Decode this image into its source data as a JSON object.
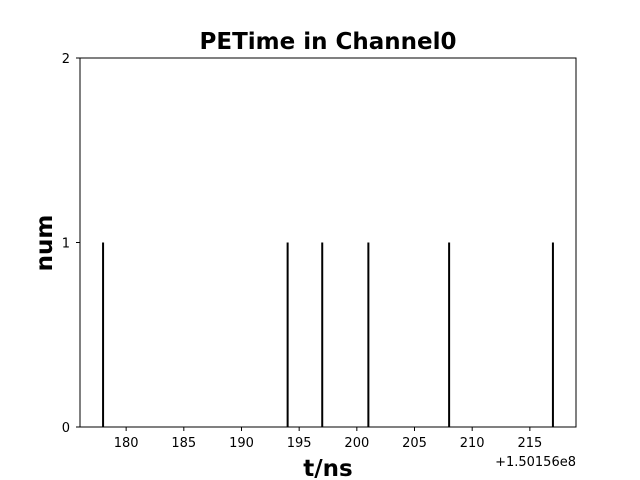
{
  "chart_data": {
    "type": "bar",
    "title": "PETime in Channel0",
    "xlabel": "t/ns",
    "ylabel": "num",
    "x_offset_label": "+1.50156e8",
    "x_offset": 150156000,
    "xlim": [
      176,
      219
    ],
    "ylim": [
      0,
      2
    ],
    "xticks": [
      180,
      185,
      190,
      195,
      200,
      205,
      210,
      215
    ],
    "yticks": [
      0,
      1,
      2
    ],
    "x": [
      178,
      194,
      197,
      201,
      208,
      217
    ],
    "values": [
      1,
      1,
      1,
      1,
      1,
      1
    ],
    "grid": false,
    "colors": {
      "bars": "#000000",
      "axes": "#000000",
      "background": "#ffffff"
    }
  }
}
